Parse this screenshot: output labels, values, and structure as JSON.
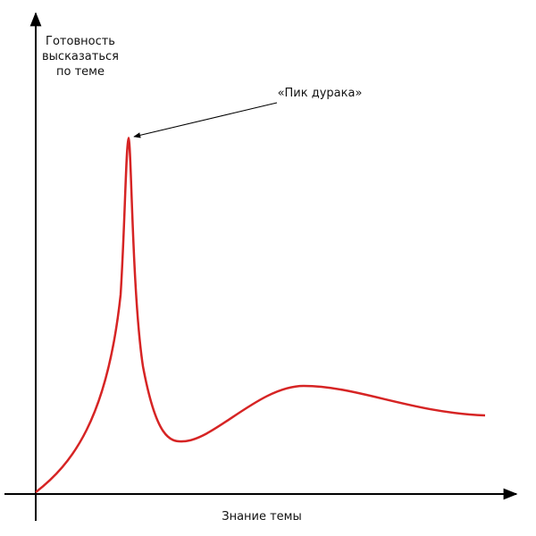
{
  "axes": {
    "y": {
      "label_lines": [
        "Готовность",
        "высказаться",
        "по теме"
      ]
    },
    "x": {
      "label": "Знание темы"
    }
  },
  "annotation": {
    "label": "«Пик дурака»"
  }
}
